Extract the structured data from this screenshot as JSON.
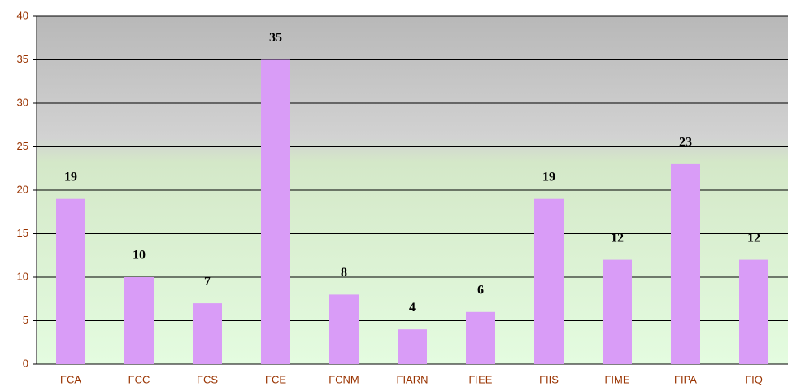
{
  "chart_data": {
    "type": "bar",
    "categories": [
      "FCA",
      "FCC",
      "FCS",
      "FCE",
      "FCNM",
      "FIARN",
      "FIEE",
      "FIIS",
      "FIME",
      "FIPA",
      "FIQ"
    ],
    "values": [
      19,
      10,
      7,
      35,
      8,
      4,
      6,
      19,
      12,
      23,
      12
    ],
    "color": "#d99cf7",
    "ylim": [
      0,
      40
    ],
    "yticks": [
      0,
      5,
      10,
      15,
      20,
      25,
      30,
      35,
      40
    ],
    "grid": true
  }
}
